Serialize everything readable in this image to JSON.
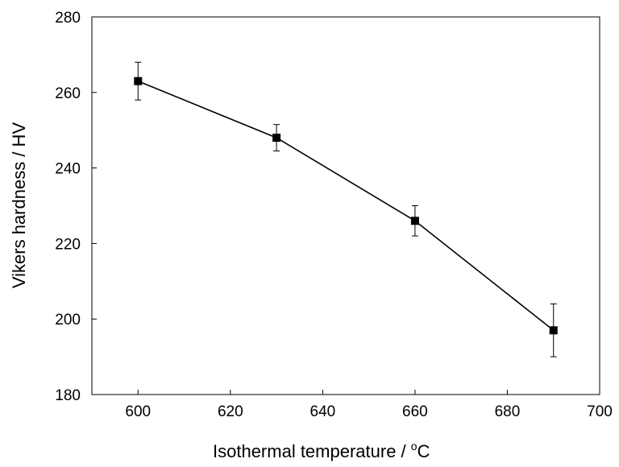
{
  "chart_data": {
    "type": "line",
    "xlabel": "Isothermal temperature / ",
    "xlabel_unit_sup": "o",
    "xlabel_unit": "C",
    "ylabel": "Vikers hardness / HV",
    "xlim": [
      590,
      700
    ],
    "ylim": [
      180,
      280
    ],
    "xticks": [
      "600",
      "620",
      "640",
      "660",
      "680",
      "700"
    ],
    "yticks": [
      "180",
      "200",
      "220",
      "240",
      "260",
      "280"
    ],
    "grid": false,
    "series": [
      {
        "x": [
          600,
          630,
          660,
          690
        ],
        "y": [
          263,
          248,
          226,
          197
        ],
        "err": [
          5,
          3.5,
          4,
          7
        ],
        "marker": "square",
        "color": "#000000"
      }
    ]
  }
}
